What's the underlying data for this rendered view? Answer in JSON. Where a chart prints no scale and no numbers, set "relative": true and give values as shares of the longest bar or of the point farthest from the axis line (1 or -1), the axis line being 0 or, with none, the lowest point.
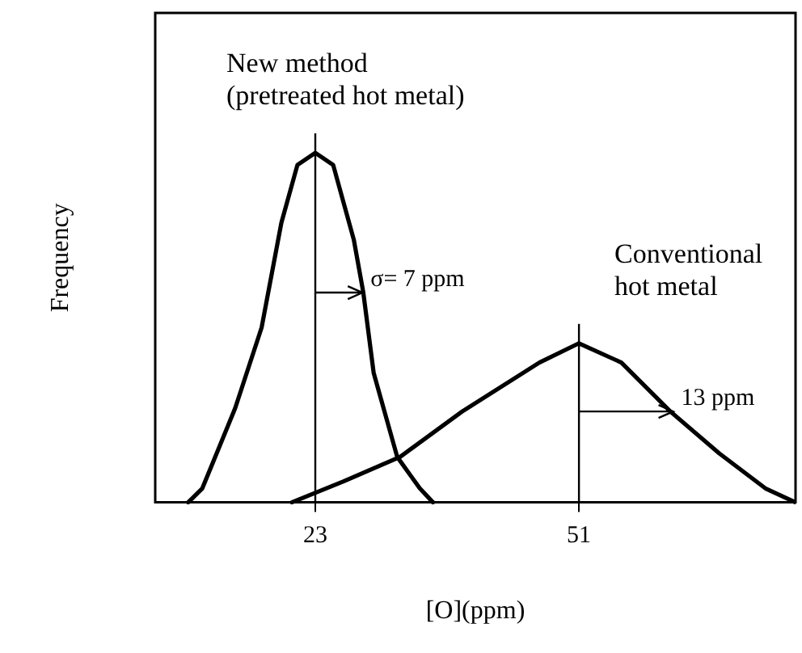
{
  "chart_data": {
    "type": "line",
    "relative": true,
    "xlabel": "[O](ppm)",
    "ylabel": "Frequency",
    "xlim": [
      6,
      74
    ],
    "xticks": [
      23,
      51
    ],
    "grid": false,
    "legend": false,
    "marker": "none",
    "line_style": "solid",
    "series": [
      {
        "name": "New method (pretreated hot metal)",
        "color": "#000000",
        "x": [
          9.5,
          11,
          14.5,
          17.3,
          19.4,
          21.1,
          23,
          24.9,
          27.1,
          28.1,
          29.2,
          31.7,
          34.1,
          35.5
        ],
        "values": [
          0,
          0.04,
          0.27,
          0.5,
          0.8,
          0.965,
          1,
          0.965,
          0.75,
          0.6,
          0.37,
          0.13,
          0.04,
          0
        ]
      },
      {
        "name": "Conventional hot metal",
        "color": "#000000",
        "x": [
          20.5,
          26,
          32,
          38.6,
          46.8,
          51,
          55.5,
          60.7,
          65.9,
          70.8,
          74
        ],
        "values": [
          0,
          0.06,
          0.13,
          0.26,
          0.4,
          0.455,
          0.4,
          0.26,
          0.14,
          0.04,
          0
        ]
      }
    ],
    "ref_lines": [
      {
        "axis": "x",
        "value": 23
      },
      {
        "axis": "x",
        "value": 51
      }
    ],
    "annotations": [
      {
        "text": "σ= 7 ppm",
        "x": 28,
        "y": 0.6
      },
      {
        "text": "13 ppm",
        "x": 61,
        "y": 0.26
      }
    ]
  }
}
